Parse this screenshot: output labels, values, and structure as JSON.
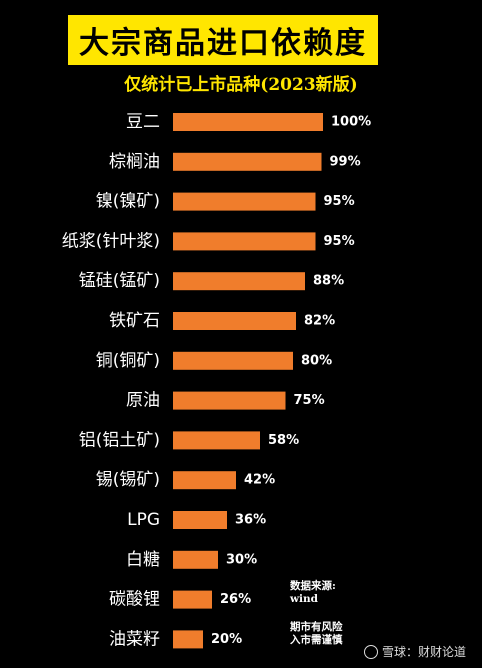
{
  "chart_data": {
    "type": "bar",
    "orientation": "horizontal",
    "title": "大宗商品进口依赖度",
    "subtitle": "仅统计已上市品种(2023新版)",
    "categories": [
      "豆二",
      "棕榈油",
      "镍(镍矿)",
      "纸浆(针叶浆)",
      "锰硅(锰矿)",
      "铁矿石",
      "铜(铜矿)",
      "原油",
      "铝(铝土矿)",
      "锡(锡矿)",
      "LPG",
      "白糖",
      "碳酸锂",
      "油菜籽"
    ],
    "values": [
      100,
      99,
      95,
      95,
      88,
      82,
      80,
      75,
      58,
      42,
      36,
      30,
      26,
      20
    ],
    "value_labels": [
      "100%",
      "99%",
      "95%",
      "95%",
      "88%",
      "82%",
      "80%",
      "75%",
      "58%",
      "42%",
      "36%",
      "30%",
      "26%",
      "20%"
    ],
    "xlim": [
      0,
      100
    ],
    "bar_color": "#f07d2c",
    "grid": false,
    "legend": "none"
  },
  "notes": {
    "source_label": "数据来源:",
    "source_value": "wind",
    "risk_line1": "期市有风险",
    "risk_line2": "入市需谨慎"
  },
  "watermark": {
    "text": "雪球：财财论道"
  }
}
